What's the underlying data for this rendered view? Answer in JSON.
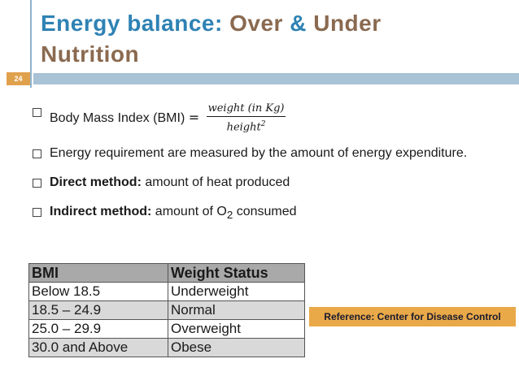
{
  "title": {
    "part1": "Energy balance:",
    "part2": "Over",
    "part3": "&",
    "part4": "Under",
    "part5": "Nutrition"
  },
  "page_number": "24",
  "bullets": {
    "bmi_label": "Body Mass Index (BMI)",
    "bmi_equals": "=",
    "bmi_numerator": "weight (in Kg)",
    "bmi_denominator": "height",
    "bmi_exponent": "2",
    "energy_req": "Energy requirement are measured by the amount of energy expenditure.",
    "direct_label": "Direct method:",
    "direct_text": "amount of heat produced",
    "indirect_label": "Indirect method:",
    "indirect_text": "amount of O",
    "indirect_sub": "2",
    "indirect_tail": "consumed"
  },
  "table": {
    "headers": [
      "BMI",
      "Weight Status"
    ],
    "rows": [
      [
        "Below 18.5",
        "Underweight"
      ],
      [
        "18.5 – 24.9",
        "Normal"
      ],
      [
        "25.0 – 29.9",
        "Overweight"
      ],
      [
        "30.0 and Above",
        "Obese"
      ]
    ]
  },
  "reference": "Reference: Center for Disease Control",
  "colors": {
    "title_blue": "#2f82b4",
    "title_brown": "#8a6a50",
    "accent_orange": "#e9a948",
    "bar_blue": "#a8c2d6"
  }
}
